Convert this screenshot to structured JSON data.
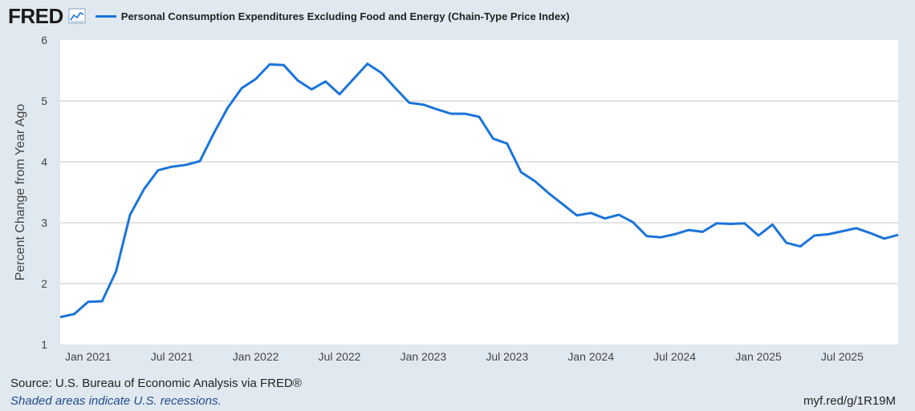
{
  "header": {
    "logo_text": "FRED",
    "legend_label": "Personal Consumption Expenditures Excluding Food and Energy (Chain-Type Price Index)"
  },
  "footer": {
    "source": "Source: U.S. Bureau of Economic Analysis via FRED®",
    "recession_note": "Shaded areas indicate U.S. recessions.",
    "link": "myf.red/g/1R19M"
  },
  "colors": {
    "background": "#e1e9f0",
    "plot_background": "#ffffff",
    "series": "#1a74d9",
    "grid": "#c5c5c5"
  },
  "chart_data": {
    "type": "line",
    "title": "Personal Consumption Expenditures Excluding Food and Energy (Chain-Type Price Index)",
    "xlabel": "",
    "ylabel": "Percent Change from Year Ago",
    "ylim": [
      1,
      6
    ],
    "yticks": [
      1,
      2,
      3,
      4,
      5,
      6
    ],
    "xlim": [
      "2020-11",
      "2025-11"
    ],
    "xticks": [
      {
        "date": "2021-01",
        "label": "Jan 2021"
      },
      {
        "date": "2021-07",
        "label": "Jul 2021"
      },
      {
        "date": "2022-01",
        "label": "Jan 2022"
      },
      {
        "date": "2022-07",
        "label": "Jul 2022"
      },
      {
        "date": "2023-01",
        "label": "Jan 2023"
      },
      {
        "date": "2023-07",
        "label": "Jul 2023"
      },
      {
        "date": "2024-01",
        "label": "Jan 2024"
      },
      {
        "date": "2024-07",
        "label": "Jul 2024"
      },
      {
        "date": "2025-01",
        "label": "Jan 2025"
      },
      {
        "date": "2025-07",
        "label": "Jul 2025"
      }
    ],
    "grid": true,
    "series": [
      {
        "name": "Personal Consumption Expenditures Excluding Food and Energy (Chain-Type Price Index)",
        "start": "2020-11",
        "frequency": "monthly",
        "values": [
          1.45,
          1.5,
          1.7,
          1.71,
          2.2,
          3.13,
          3.55,
          3.86,
          3.92,
          3.95,
          4.01,
          4.47,
          4.89,
          5.21,
          5.36,
          5.6,
          5.59,
          5.34,
          5.19,
          5.32,
          5.11,
          5.36,
          5.61,
          5.46,
          5.21,
          4.97,
          4.94,
          4.86,
          4.79,
          4.79,
          4.74,
          4.38,
          4.3,
          3.83,
          3.68,
          3.48,
          3.3,
          3.12,
          3.16,
          3.07,
          3.13,
          3.01,
          2.78,
          2.76,
          2.81,
          2.88,
          2.85,
          2.99,
          2.98,
          2.99,
          2.79,
          2.97,
          2.67,
          2.61,
          2.79,
          2.81,
          2.86,
          2.91,
          2.83,
          2.74,
          2.8
        ]
      }
    ]
  }
}
